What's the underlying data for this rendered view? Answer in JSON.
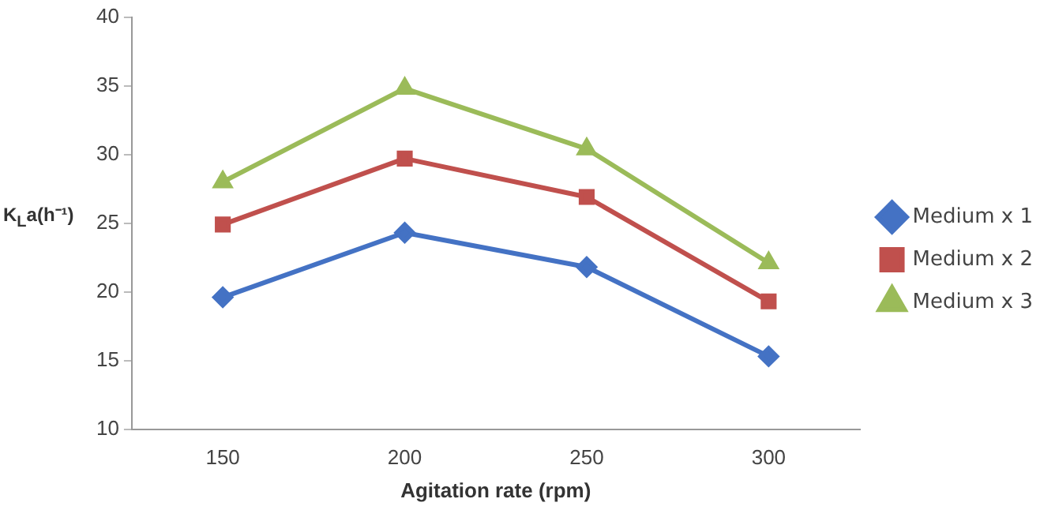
{
  "chart_data": {
    "type": "line",
    "xlabel": "Agitation rate (rpm)",
    "ylabel": "K$_{L}$a(h⁻¹)",
    "categories": [
      "150",
      "200",
      "250",
      "300"
    ],
    "series": [
      {
        "name": "Medium x 1",
        "color": "#4472c4",
        "marker": "diamond",
        "values": [
          19.6,
          24.3,
          21.8,
          15.3
        ]
      },
      {
        "name": "Medium x 2",
        "color": "#c0504d",
        "marker": "square",
        "values": [
          24.9,
          29.7,
          26.9,
          19.3
        ]
      },
      {
        "name": "Medium x 3",
        "color": "#9bbb59",
        "marker": "triangle",
        "values": [
          28.0,
          34.8,
          30.4,
          22.1
        ]
      }
    ],
    "ylim": [
      10,
      40
    ],
    "yticks": [
      10,
      15,
      20,
      25,
      30,
      35,
      40
    ],
    "grid": false,
    "legend": "right"
  }
}
